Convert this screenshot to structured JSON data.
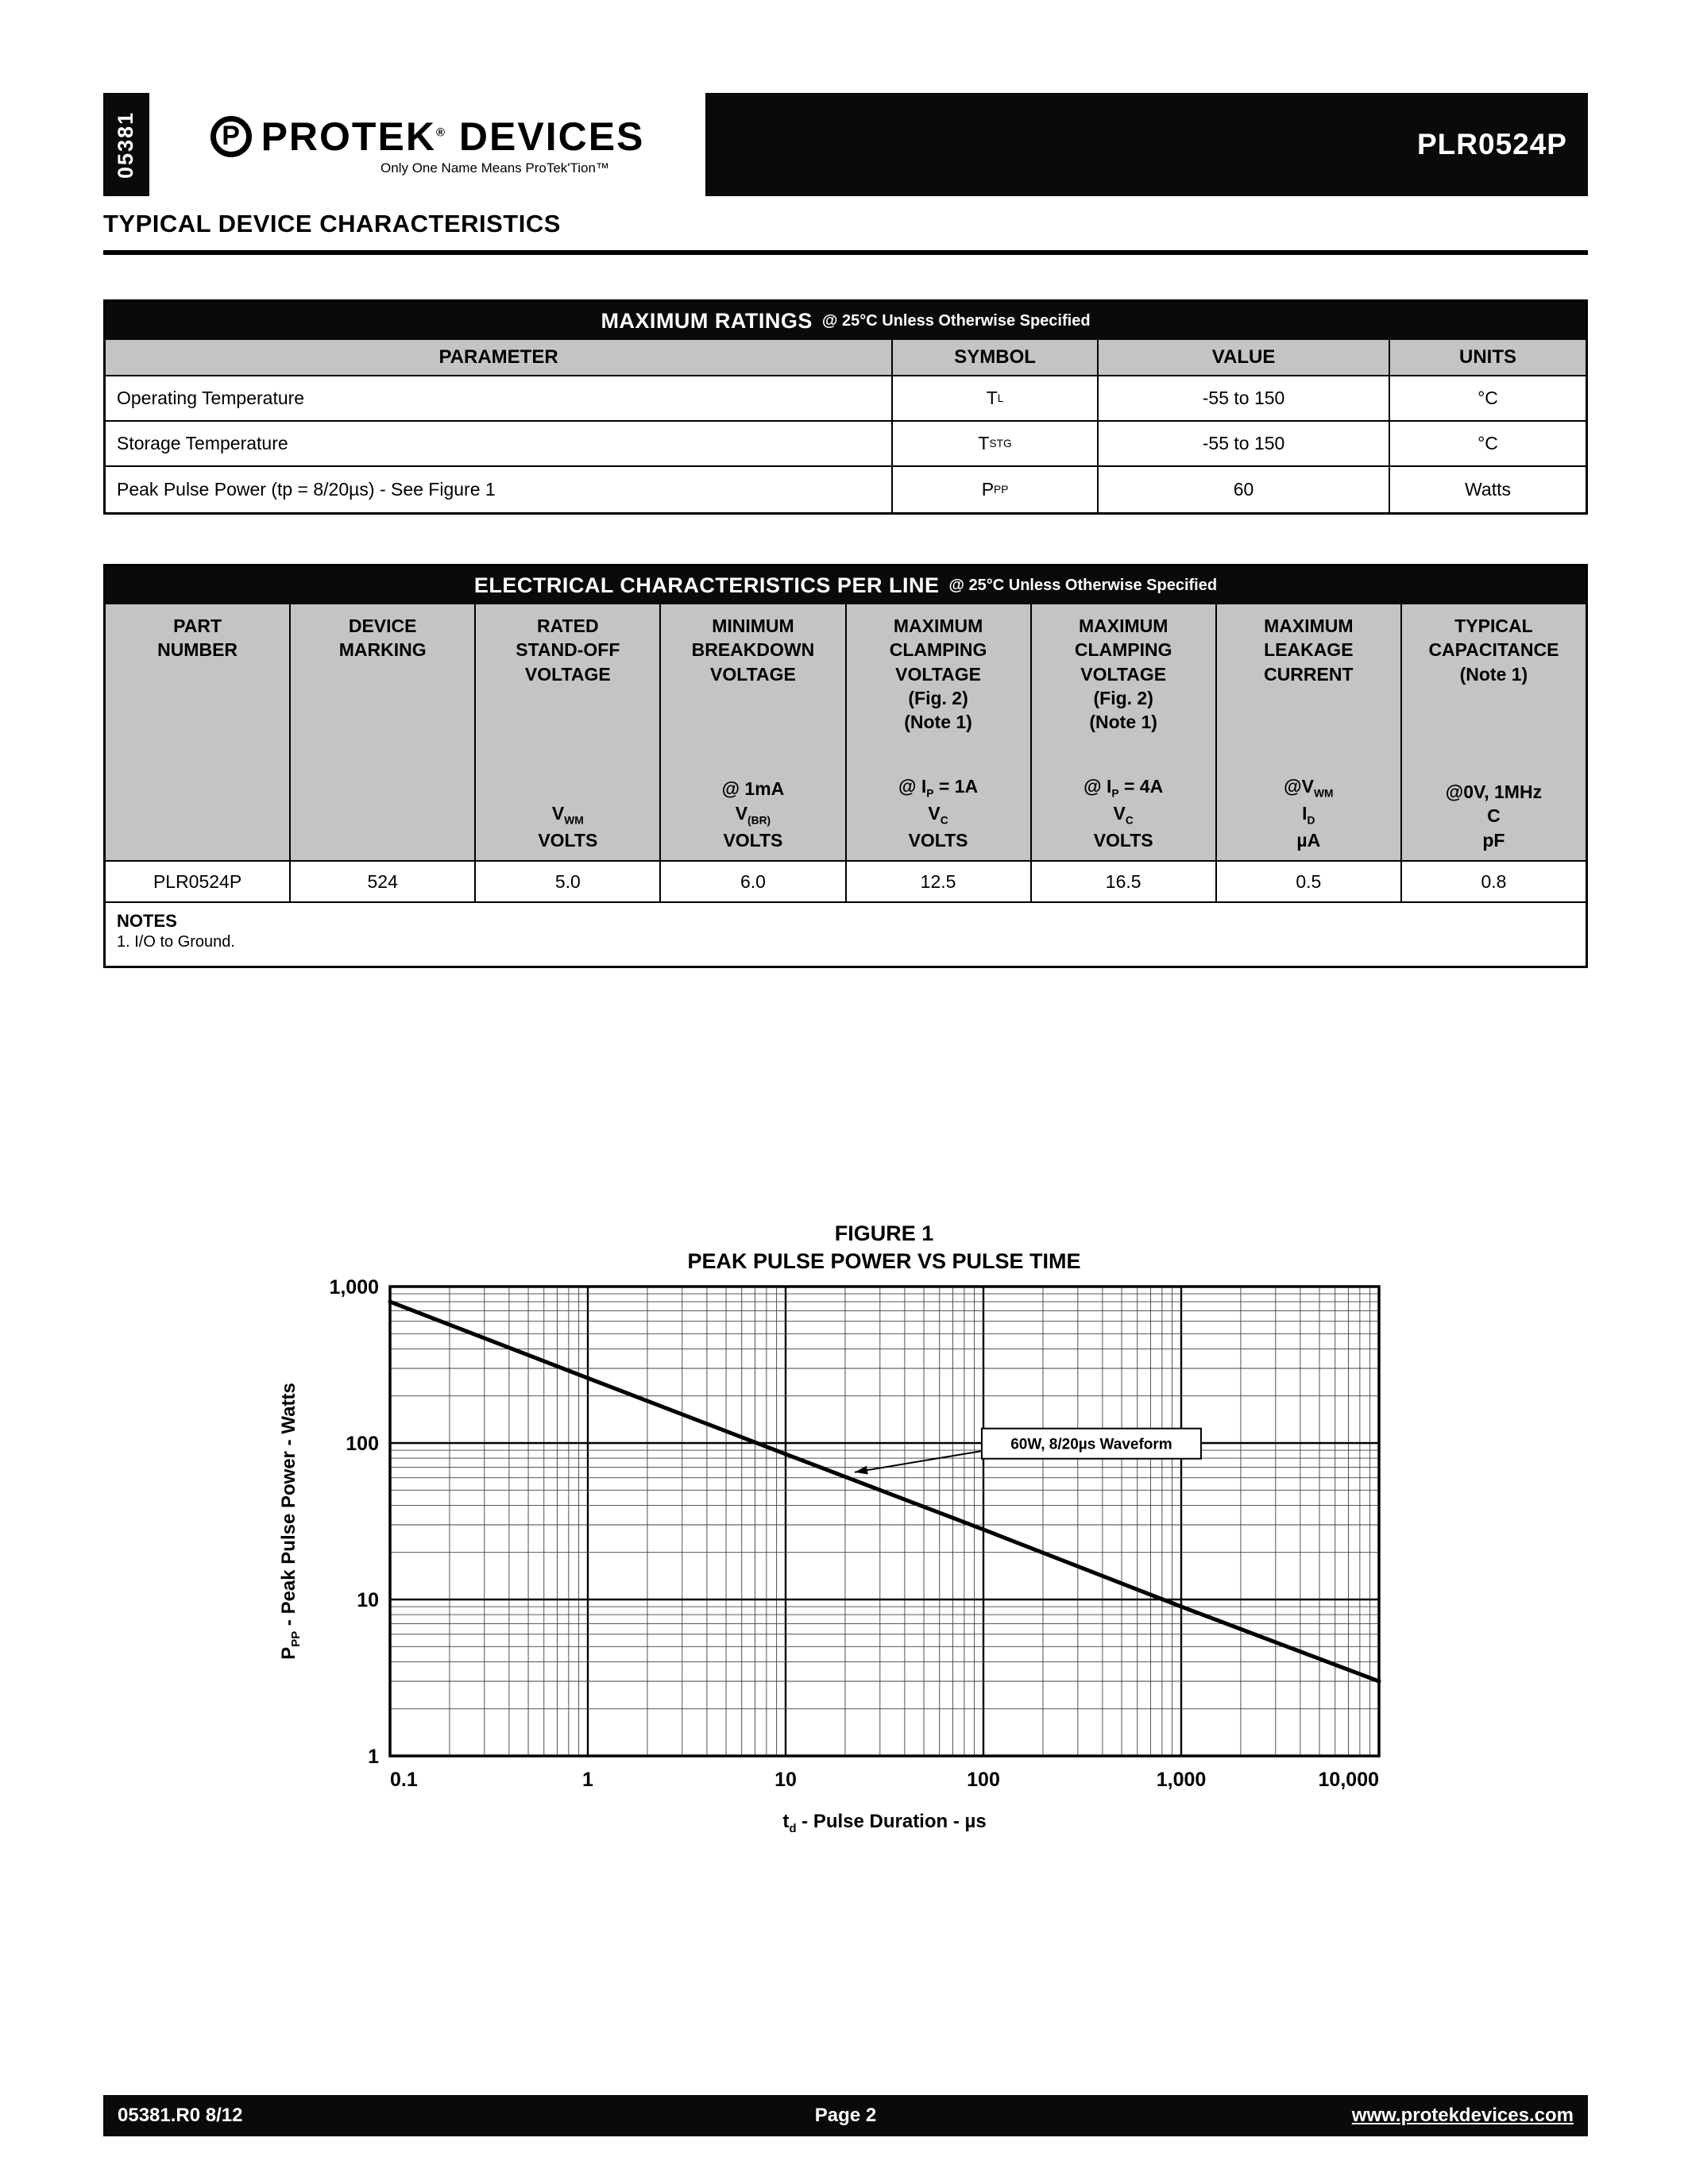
{
  "header": {
    "doc_number_vertical": "05381",
    "logo": {
      "icon_letter": "P",
      "word1": "PROTEK",
      "reg": "®",
      "word2": " DEVICES",
      "tagline": "Only One Name Means ProTek'Tion™"
    },
    "part_number": "PLR0524P"
  },
  "page_title": "TYPICAL DEVICE CHARACTERISTICS",
  "max_table": {
    "title": "MAXIMUM RATINGS",
    "title_suffix": "@ 25°C Unless Otherwise Specified",
    "headers": [
      "PARAMETER",
      "SYMBOL",
      "VALUE",
      "UNITS"
    ],
    "rows": [
      {
        "parameter": "Operating Temperature",
        "symbol": "T~L~",
        "value": "-55 to 150",
        "units": "°C"
      },
      {
        "parameter": "Storage Temperature",
        "symbol": "T~STG~",
        "value": "-55 to 150",
        "units": "°C"
      },
      {
        "parameter": "Peak Pulse Power (tp = 8/20µs) - See Figure 1",
        "symbol": "P~PP~",
        "value": "60",
        "units": "Watts"
      }
    ]
  },
  "elec_table": {
    "title": "ELECTRICAL CHARACTERISTICS PER LINE",
    "title_suffix": "@ 25°C Unless Otherwise Specified",
    "columns": [
      {
        "title": [
          "PART",
          "NUMBER"
        ],
        "bottom": []
      },
      {
        "title": [
          "DEVICE",
          "MARKING"
        ],
        "bottom": []
      },
      {
        "title": [
          "RATED",
          "STAND-OFF",
          "VOLTAGE"
        ],
        "bottom": [
          "V~WM~",
          "VOLTS"
        ]
      },
      {
        "title": [
          "MINIMUM",
          "BREAKDOWN",
          "VOLTAGE"
        ],
        "bottom": [
          "@ 1mA",
          "V~(BR)~",
          "VOLTS"
        ]
      },
      {
        "title": [
          "MAXIMUM",
          "CLAMPING",
          "VOLTAGE",
          "(Fig. 2)",
          "(Note 1)"
        ],
        "bottom": [
          "@ I~P~ = 1A",
          "V~C~",
          "VOLTS"
        ]
      },
      {
        "title": [
          "MAXIMUM",
          "CLAMPING",
          "VOLTAGE",
          "(Fig. 2)",
          "(Note 1)"
        ],
        "bottom": [
          "@ I~P~ = 4A",
          "V~C~",
          "VOLTS"
        ]
      },
      {
        "title": [
          "MAXIMUM",
          "LEAKAGE",
          "CURRENT"
        ],
        "bottom": [
          "@V~WM~",
          "I~D~",
          "µA"
        ]
      },
      {
        "title": [
          "TYPICAL",
          "CAPACITANCE",
          "(Note 1)"
        ],
        "bottom": [
          "@0V, 1MHz",
          "C",
          "pF"
        ]
      }
    ],
    "row": [
      "PLR0524P",
      "524",
      "5.0",
      "6.0",
      "12.5",
      "16.5",
      "0.5",
      "0.8"
    ],
    "notes_title": "NOTES",
    "notes": [
      "1.  I/O to Ground."
    ]
  },
  "chart_data": {
    "type": "line",
    "title": "FIGURE 1",
    "subtitle": "PEAK PULSE POWER VS PULSE TIME",
    "xlabel": "t~d~ - Pulse Duration - µs",
    "ylabel": "P~PP~ - Peak Pulse Power - Watts",
    "x_scale": "log",
    "y_scale": "log",
    "xlim": [
      0.1,
      10000
    ],
    "ylim": [
      1,
      1000
    ],
    "x_ticks": [
      "0.1",
      "1",
      "10",
      "100",
      "1,000",
      "10,000"
    ],
    "y_ticks": [
      "1,000",
      "100",
      "10",
      "1"
    ],
    "grid": "log-log both major and minor",
    "series": [
      {
        "name": "Peak Pulse Power",
        "x": [
          0.1,
          1,
          10,
          100,
          1000,
          10000
        ],
        "y": [
          800,
          260,
          85,
          28,
          9,
          3
        ]
      }
    ],
    "annotation": {
      "label": "60W, 8/20µs Waveform",
      "point_x": 20,
      "point_y": 60
    }
  },
  "footer": {
    "left": "05381.R0 8/12",
    "center": "Page 2",
    "right": "www.protekdevices.com"
  }
}
